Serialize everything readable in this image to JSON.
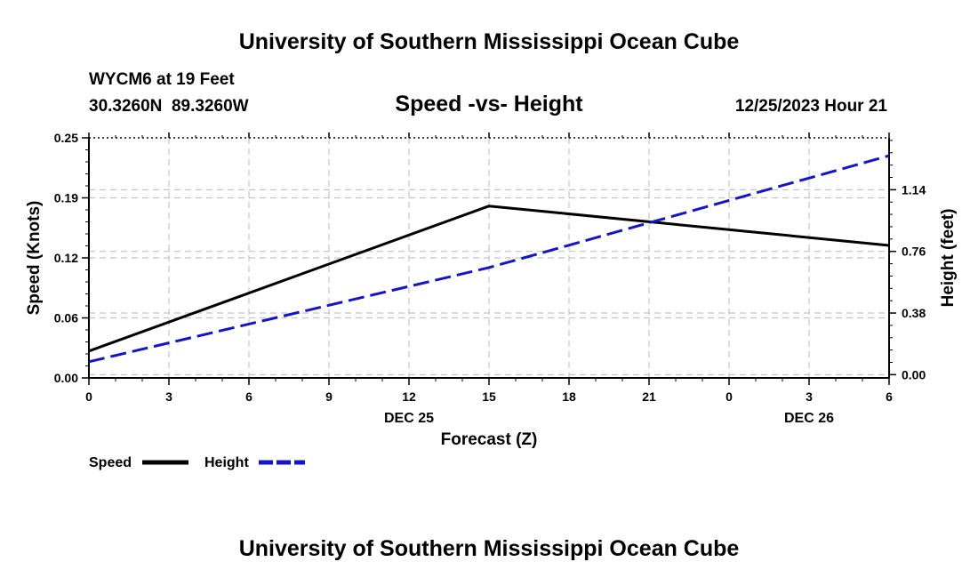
{
  "header": {
    "title": "University of Southern Mississippi Ocean Cube",
    "station": "WYCM6 at 19 Feet",
    "coords": "30.3260N  89.3260W",
    "subtitle": "Speed -vs- Height",
    "datetime": "12/25/2023 Hour 21"
  },
  "footer": {
    "title": "University of Southern Mississippi Ocean Cube"
  },
  "legend": [
    {
      "name": "Speed",
      "color": "#000000",
      "dash": "solid"
    },
    {
      "name": "Height",
      "color": "#1414c8",
      "dash": "dashed"
    }
  ],
  "chart_data": {
    "type": "line",
    "title": "Speed -vs- Height",
    "xlabel": "Forecast (Z)",
    "ylabel": "Speed (Knots)",
    "y2label": "Height (feet)",
    "x_ticks": [
      "0",
      "3",
      "6",
      "9",
      "12",
      "15",
      "18",
      "21",
      "0",
      "3",
      "6"
    ],
    "x_hours": [
      0,
      3,
      6,
      9,
      12,
      15,
      18,
      21,
      24,
      27,
      30
    ],
    "date_labels": [
      {
        "label": "DEC 25",
        "hour": 12
      },
      {
        "label": "DEC 26",
        "hour": 27
      }
    ],
    "xlim": [
      0,
      30
    ],
    "ylim": [
      0,
      0.25
    ],
    "y_ticks": [
      "0.00",
      "0.06",
      "0.12",
      "0.19",
      "0.25"
    ],
    "y_tick_values": [
      0,
      0.0625,
      0.125,
      0.1875,
      0.25
    ],
    "y2lim": [
      -0.02,
      1.46
    ],
    "y2_ticks": [
      "0.00",
      "0.38",
      "0.76",
      "1.14"
    ],
    "y2_tick_values": [
      0,
      0.38,
      0.76,
      1.14
    ],
    "series": [
      {
        "name": "Speed",
        "axis": "left",
        "color": "#000000",
        "x": [
          0,
          15,
          30
        ],
        "values": [
          0.028,
          0.179,
          0.138
        ]
      },
      {
        "name": "Height",
        "axis": "right",
        "color": "#1414c8",
        "x": [
          0,
          15,
          30
        ],
        "values": [
          0.08,
          0.66,
          1.35
        ]
      }
    ]
  }
}
